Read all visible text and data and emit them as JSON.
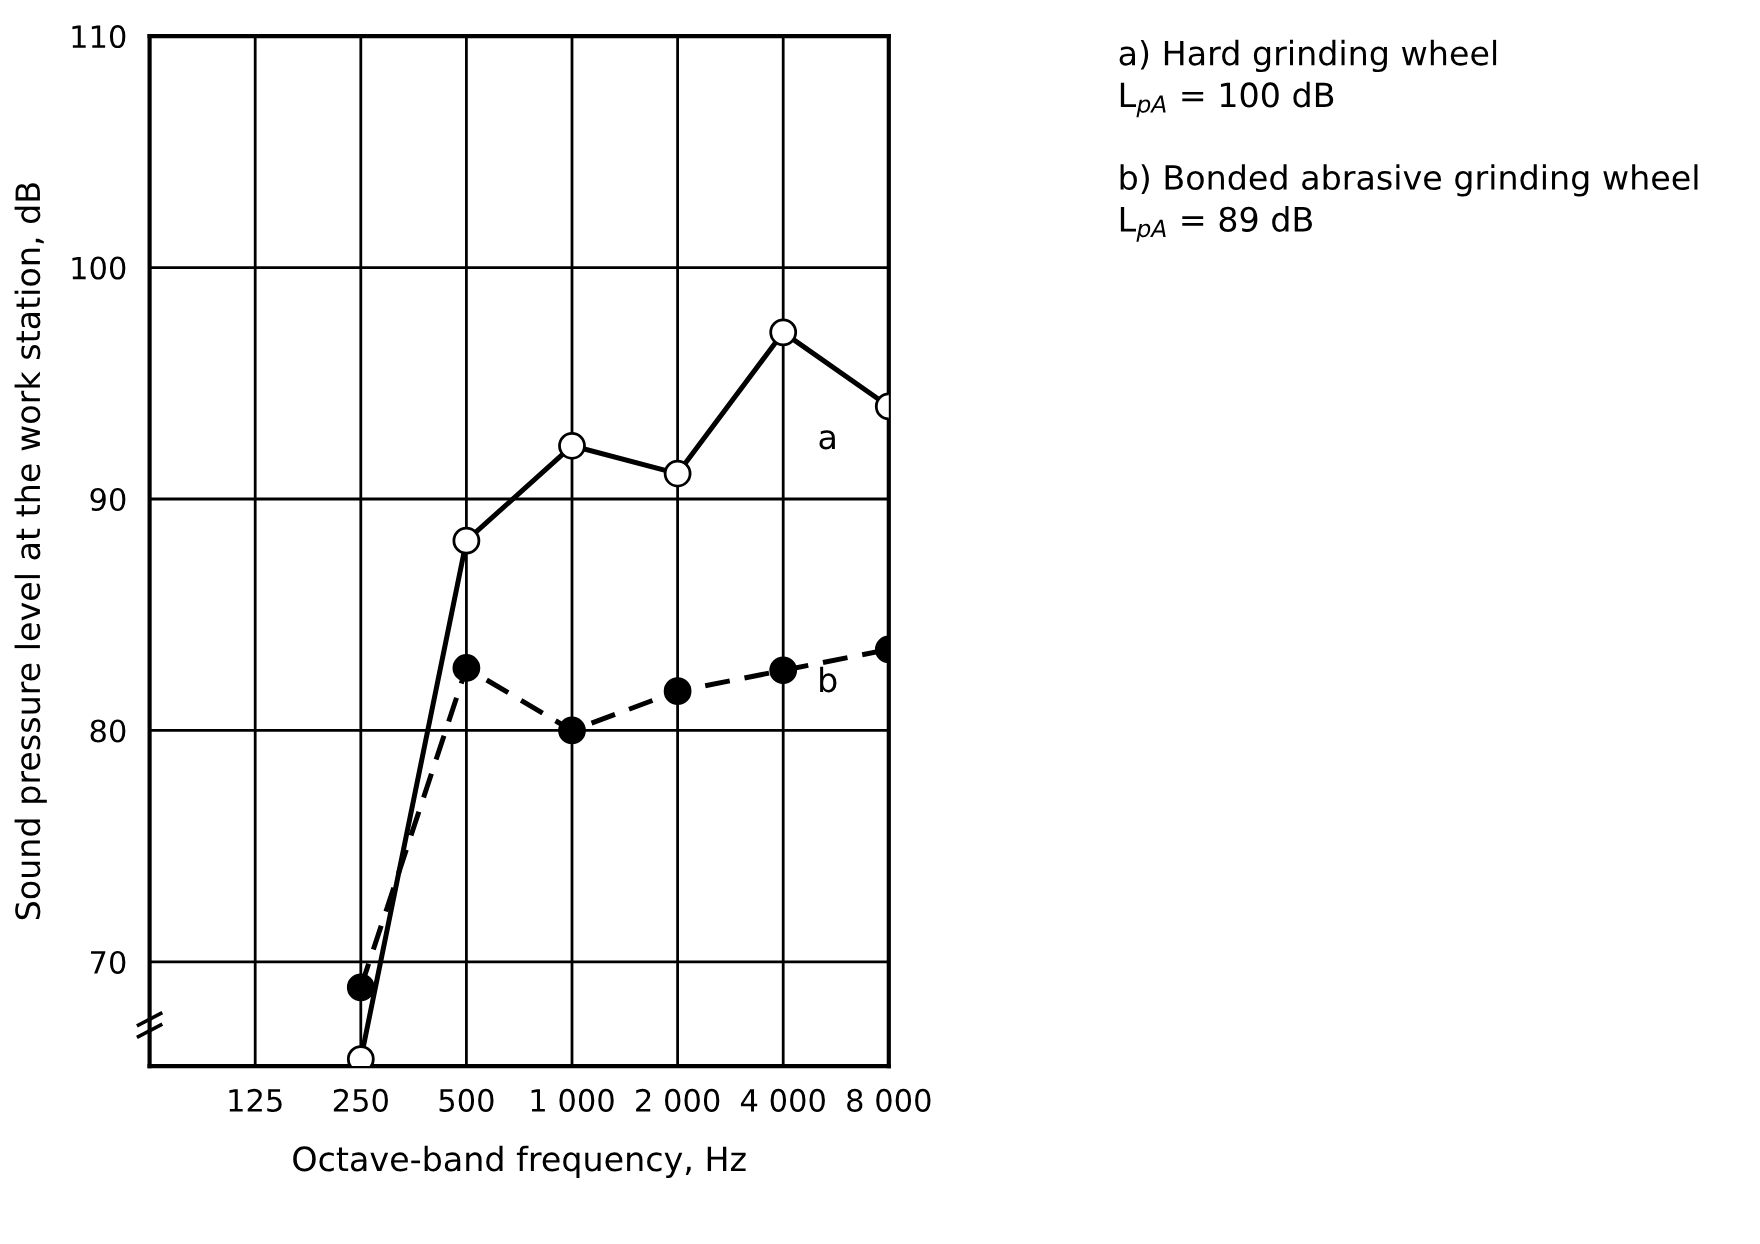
{
  "chart_data": {
    "type": "line",
    "xlabel": "Octave-band frequency, Hz",
    "ylabel": "Sound pressure level at the work station, dB",
    "categories": [
      null,
      "125",
      "250",
      "500",
      "1 000",
      "2 000",
      "4 000",
      "8 000"
    ],
    "series": [
      {
        "name": "a",
        "color": "#000000",
        "marker": "circle",
        "line_style": "solid",
        "values": [
          null,
          null,
          65.8,
          88.2,
          92.3,
          91.1,
          97.2,
          94.0
        ]
      },
      {
        "name": "b",
        "color": "#000000",
        "marker": "circle",
        "line_style": "dashed",
        "values": [
          null,
          null,
          68.9,
          82.7,
          80.0,
          81.7,
          82.6,
          83.5
        ]
      }
    ],
    "ylim": [
      65.5,
      110
    ],
    "yticks": [
      70,
      80,
      90,
      100,
      110
    ],
    "grid": true,
    "legend": false,
    "annotations": [
      "a) Hard grinding wheel",
      "L$_{pA}$ = 100 dB",
      "b) Bonded abrasive grinding wheel",
      "L$_{pA}$ = 89 dB"
    ]
  }
}
